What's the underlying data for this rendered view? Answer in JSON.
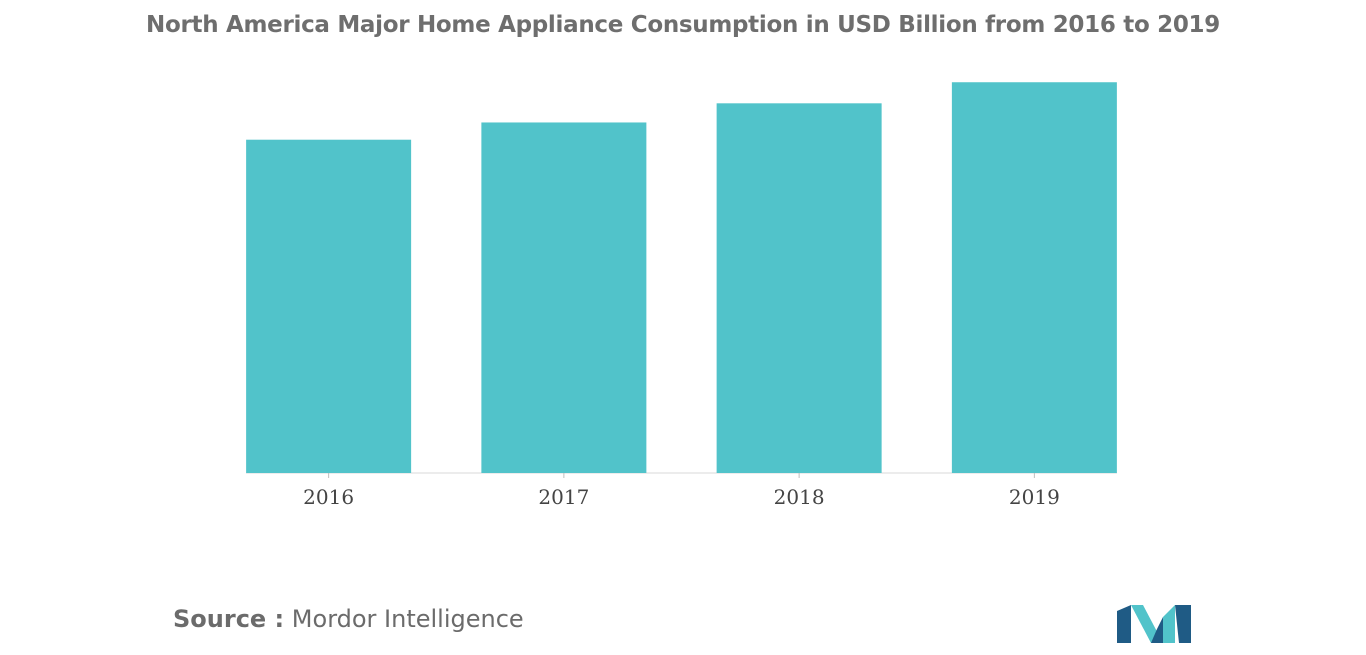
{
  "chart_data": {
    "type": "bar",
    "title": "North America Major Home Appliance Consumption in USD Billion from 2016 to 2019",
    "xlabel": "",
    "ylabel": "",
    "categories": [
      "2016",
      "2017",
      "2018",
      "2019"
    ],
    "values": [
      17.4,
      18.3,
      19.3,
      20.4
    ],
    "ylim": [
      0,
      21.3
    ],
    "grid": false,
    "color": "#51c3ca"
  },
  "source": {
    "label": "Source :",
    "name": "Mordor Intelligence"
  },
  "logo": {
    "name": "mordor-intelligence-logo",
    "colors": [
      "#1f5b85",
      "#51c3ca"
    ]
  }
}
